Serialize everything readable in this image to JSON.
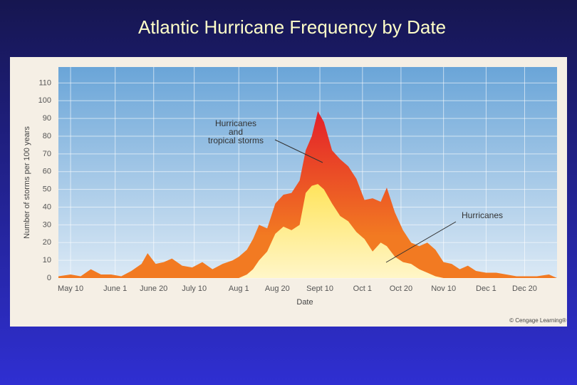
{
  "title": "Atlantic Hurricane Frequency by Date",
  "credit": "© Cengage Learning®",
  "chart_data": {
    "type": "area",
    "y_label": "Number of storms per 100 years",
    "x_label": "Date",
    "xlim": [
      124,
      370
    ],
    "xticks": [
      {
        "value": 130,
        "label": "May 10"
      },
      {
        "value": 152,
        "label": "June 1"
      },
      {
        "value": 171,
        "label": "June 20"
      },
      {
        "value": 191,
        "label": "July 10"
      },
      {
        "value": 213,
        "label": "Aug 1"
      },
      {
        "value": 232,
        "label": "Aug 20"
      },
      {
        "value": 253,
        "label": "Sept 10"
      },
      {
        "value": 274,
        "label": "Oct 1"
      },
      {
        "value": 293,
        "label": "Oct 20"
      },
      {
        "value": 314,
        "label": "Nov 10"
      },
      {
        "value": 335,
        "label": "Dec 1"
      },
      {
        "value": 354,
        "label": "Dec 20"
      }
    ],
    "ylim": [
      0,
      119
    ],
    "yticks": [
      0,
      10,
      20,
      30,
      40,
      50,
      60,
      70,
      80,
      90,
      100,
      110
    ],
    "grid": true,
    "x": [
      124,
      130,
      135,
      140,
      145,
      150,
      155,
      160,
      165,
      168,
      172,
      176,
      180,
      185,
      190,
      195,
      200,
      205,
      210,
      213,
      217,
      220,
      223,
      227,
      231,
      235,
      239,
      243,
      246,
      249,
      252,
      255,
      259,
      263,
      267,
      271,
      275,
      279,
      283,
      286,
      290,
      294,
      298,
      302,
      306,
      310,
      314,
      318,
      322,
      326,
      330,
      335,
      340,
      345,
      350,
      355,
      360,
      366,
      370
    ],
    "series": [
      {
        "name": "Hurricanes\nand\ntropical storms",
        "color": "#f27a22",
        "values": [
          1,
          2,
          1,
          5,
          2,
          2,
          1,
          4,
          8,
          14,
          8,
          9,
          11,
          7,
          6,
          9,
          5,
          8,
          10,
          12,
          16,
          22,
          30,
          28,
          42,
          47,
          48,
          55,
          72,
          80,
          94,
          88,
          72,
          67,
          63,
          56,
          44,
          45,
          43,
          51,
          37,
          27,
          20,
          18,
          20,
          16,
          9,
          8,
          5,
          7,
          4,
          3,
          3,
          2,
          1,
          1,
          1,
          2,
          0
        ]
      },
      {
        "name": "Hurricanes",
        "color": "#ffe45c",
        "values": [
          0,
          0,
          0,
          0,
          0,
          0,
          0,
          0,
          0,
          0,
          0,
          0,
          0,
          0,
          0,
          0,
          0,
          0,
          0,
          0,
          2,
          5,
          10,
          15,
          25,
          29,
          27,
          30,
          48,
          52,
          53,
          50,
          42,
          35,
          32,
          26,
          22,
          15,
          20,
          18,
          12,
          9,
          8,
          5,
          3,
          1,
          0,
          0,
          0,
          0,
          0,
          0,
          0,
          0,
          0,
          0,
          0,
          0,
          0
        ]
      }
    ]
  }
}
